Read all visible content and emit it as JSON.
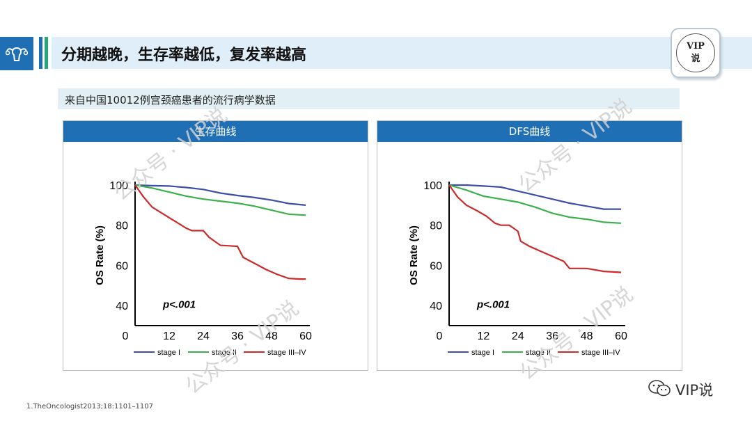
{
  "header": {
    "title": "分期越晚，生存率越低，复发率越高",
    "accent": "#1f6fb5",
    "stripe_colors": [
      "#1f6fb5",
      "#23a67a"
    ]
  },
  "badge": {
    "line1": "VIP",
    "line2": "说"
  },
  "subtitle": "来自中国10012例宫颈癌患者的流行病学数据",
  "watermark": "公众号 · VIP说",
  "footnote": "1.TheOncologist2013;18:1101–1107",
  "wechat_label": "VIP说",
  "chart_data": [
    {
      "type": "line",
      "title": "生存曲线",
      "ylabel": "OS Rate (%)",
      "annotation": "p<.001",
      "xlim": [
        0,
        60
      ],
      "ylim": [
        30,
        100
      ],
      "xticks": [
        0,
        12,
        24,
        36,
        48,
        60
      ],
      "yticks": [
        40,
        60,
        80,
        100
      ],
      "legend_position": "bottom",
      "series": [
        {
          "name": "stage I",
          "color": "#3d4ea8",
          "points": [
            [
              0,
              100
            ],
            [
              6,
              99.7
            ],
            [
              12,
              99.5
            ],
            [
              18,
              98.8
            ],
            [
              24,
              97.8
            ],
            [
              30,
              96
            ],
            [
              36,
              94.8
            ],
            [
              42,
              93.8
            ],
            [
              48,
              92.5
            ],
            [
              54,
              90.8
            ],
            [
              60,
              90
            ]
          ]
        },
        {
          "name": "stage II",
          "color": "#3cb04a",
          "points": [
            [
              0,
              100
            ],
            [
              6,
              98.5
            ],
            [
              12,
              96.5
            ],
            [
              18,
              94.5
            ],
            [
              24,
              93
            ],
            [
              30,
              92
            ],
            [
              36,
              91
            ],
            [
              42,
              89.5
            ],
            [
              48,
              87.5
            ],
            [
              54,
              85.5
            ],
            [
              60,
              85
            ]
          ]
        },
        {
          "name": "stage III–IV",
          "color": "#cc2a2a",
          "points": [
            [
              0,
              100
            ],
            [
              3,
              94
            ],
            [
              6,
              89
            ],
            [
              10,
              85.5
            ],
            [
              14,
              82
            ],
            [
              18,
              78.5
            ],
            [
              20,
              77.3
            ],
            [
              24,
              77.3
            ],
            [
              26,
              74
            ],
            [
              30,
              70
            ],
            [
              36,
              69.5
            ],
            [
              38,
              64
            ],
            [
              42,
              61
            ],
            [
              46,
              58
            ],
            [
              50,
              55.5
            ],
            [
              54,
              53.5
            ],
            [
              58,
              53.2
            ],
            [
              60,
              53.2
            ]
          ]
        }
      ]
    },
    {
      "type": "line",
      "title": "DFS曲线",
      "ylabel": "OS Rate (%)",
      "annotation": "p<.001",
      "xlim": [
        0,
        60
      ],
      "ylim": [
        30,
        100
      ],
      "xticks": [
        0,
        12,
        24,
        36,
        48,
        60
      ],
      "yticks": [
        40,
        60,
        80,
        100
      ],
      "legend_position": "bottom",
      "series": [
        {
          "name": "stage I",
          "color": "#3d4ea8",
          "points": [
            [
              0,
              100
            ],
            [
              6,
              100
            ],
            [
              12,
              99.5
            ],
            [
              18,
              99
            ],
            [
              24,
              97
            ],
            [
              30,
              95
            ],
            [
              36,
              93
            ],
            [
              42,
              91
            ],
            [
              48,
              89.5
            ],
            [
              54,
              88
            ],
            [
              60,
              88
            ]
          ]
        },
        {
          "name": "stage II",
          "color": "#3cb04a",
          "points": [
            [
              0,
              100
            ],
            [
              6,
              97.5
            ],
            [
              12,
              94.5
            ],
            [
              18,
              93
            ],
            [
              24,
              91.5
            ],
            [
              30,
              89
            ],
            [
              36,
              86
            ],
            [
              42,
              84
            ],
            [
              48,
              83
            ],
            [
              54,
              81.5
            ],
            [
              60,
              81
            ]
          ]
        },
        {
          "name": "stage III–IV",
          "color": "#cc2a2a",
          "points": [
            [
              0,
              100
            ],
            [
              3,
              94
            ],
            [
              6,
              90
            ],
            [
              10,
              87
            ],
            [
              13,
              84.5
            ],
            [
              16,
              81
            ],
            [
              18,
              80
            ],
            [
              21,
              80
            ],
            [
              24,
              77
            ],
            [
              25,
              72
            ],
            [
              28,
              69.5
            ],
            [
              32,
              67
            ],
            [
              36,
              64.5
            ],
            [
              40,
              62
            ],
            [
              42,
              58.5
            ],
            [
              48,
              58.5
            ],
            [
              54,
              57
            ],
            [
              60,
              56.5
            ]
          ]
        }
      ]
    }
  ]
}
